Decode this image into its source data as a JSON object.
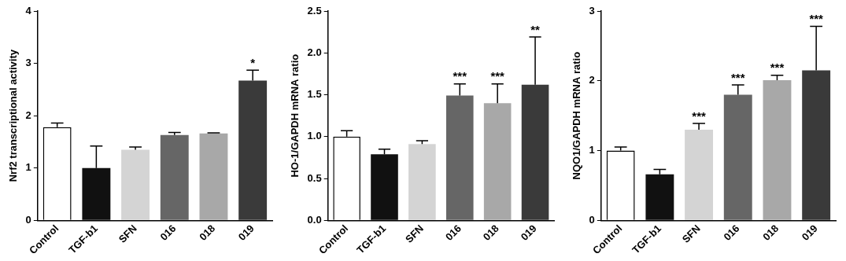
{
  "chart_data": [
    {
      "type": "bar",
      "y_label": "Nrf2 transcriptional activity",
      "categories": [
        "Control",
        "TGF-b1",
        "SFN",
        "016",
        "018",
        "019"
      ],
      "values": [
        1.78,
        1.0,
        1.35,
        1.63,
        1.66,
        2.67
      ],
      "errors": [
        0.08,
        0.42,
        0.05,
        0.05,
        0.01,
        0.2
      ],
      "significance": [
        null,
        null,
        null,
        null,
        null,
        "*"
      ],
      "colors": [
        "#ffffff",
        "#111111",
        "#d4d4d4",
        "#666666",
        "#a8a8a8",
        "#3a3a3a"
      ],
      "ylim": [
        0,
        4
      ],
      "yticks": [
        0,
        1,
        2,
        3,
        4
      ],
      "grid": false
    },
    {
      "type": "bar",
      "y_label": "HO-1/GAPDH mRNA ratio",
      "categories": [
        "Control",
        "TGF-b1",
        "SFN",
        "016",
        "018",
        "019"
      ],
      "values": [
        1.0,
        0.79,
        0.91,
        1.49,
        1.4,
        1.62
      ],
      "errors": [
        0.07,
        0.06,
        0.04,
        0.14,
        0.23,
        0.57
      ],
      "significance": [
        null,
        null,
        null,
        "***",
        "***",
        "**"
      ],
      "colors": [
        "#ffffff",
        "#111111",
        "#d4d4d4",
        "#666666",
        "#a8a8a8",
        "#3a3a3a"
      ],
      "ylim": [
        0,
        2.5
      ],
      "yticks": [
        {
          "value": 0,
          "label": "0.0"
        },
        0.5,
        {
          "value": 1,
          "label": "1.0"
        },
        1.5,
        {
          "value": 2,
          "label": "2.0"
        },
        2.5
      ],
      "grid": false
    },
    {
      "type": "bar",
      "y_label": "NQO1/GAPDH mRNA ratio",
      "categories": [
        "Control",
        "TGF-b1",
        "SFN",
        "016",
        "018",
        "019"
      ],
      "values": [
        1.0,
        0.66,
        1.3,
        1.8,
        2.01,
        2.15
      ],
      "errors": [
        0.05,
        0.07,
        0.09,
        0.14,
        0.07,
        0.63
      ],
      "significance": [
        null,
        null,
        "***",
        "***",
        "***",
        "***"
      ],
      "colors": [
        "#ffffff",
        "#111111",
        "#d4d4d4",
        "#666666",
        "#a8a8a8",
        "#3a3a3a"
      ],
      "ylim": [
        0,
        3
      ],
      "yticks": [
        0,
        1,
        2,
        3
      ],
      "grid": false
    }
  ]
}
